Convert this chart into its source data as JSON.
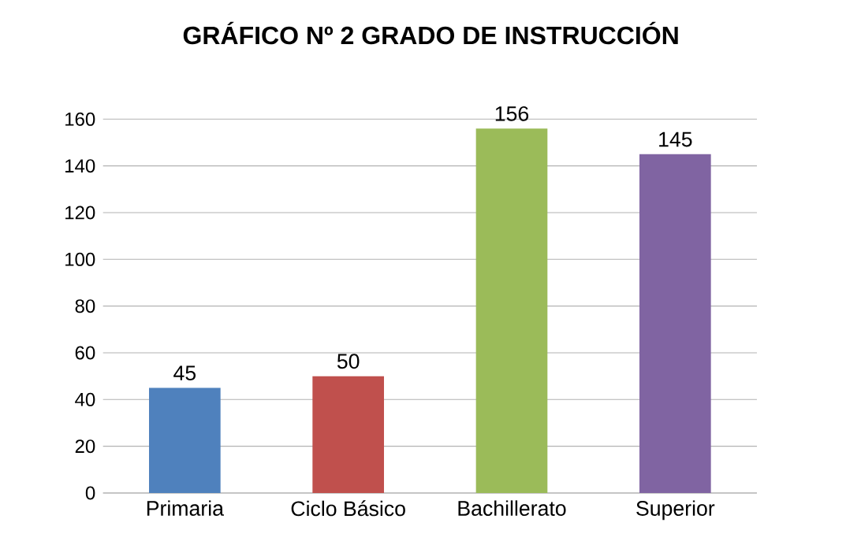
{
  "chart_data": {
    "type": "bar",
    "title": "GRÁFICO Nº 2 GRADO DE INSTRUCCIÓN",
    "categories": [
      "Primaria",
      "Ciclo Básico",
      "Bachillerato",
      "Superior"
    ],
    "values": [
      45,
      50,
      156,
      145
    ],
    "colors": [
      "#4f81bd",
      "#c0504d",
      "#9bbb59",
      "#8064a2"
    ],
    "ylim": [
      0,
      160
    ],
    "yticks": [
      0,
      20,
      40,
      60,
      80,
      100,
      120,
      140,
      160
    ],
    "grid": "y",
    "data_labels": true
  }
}
